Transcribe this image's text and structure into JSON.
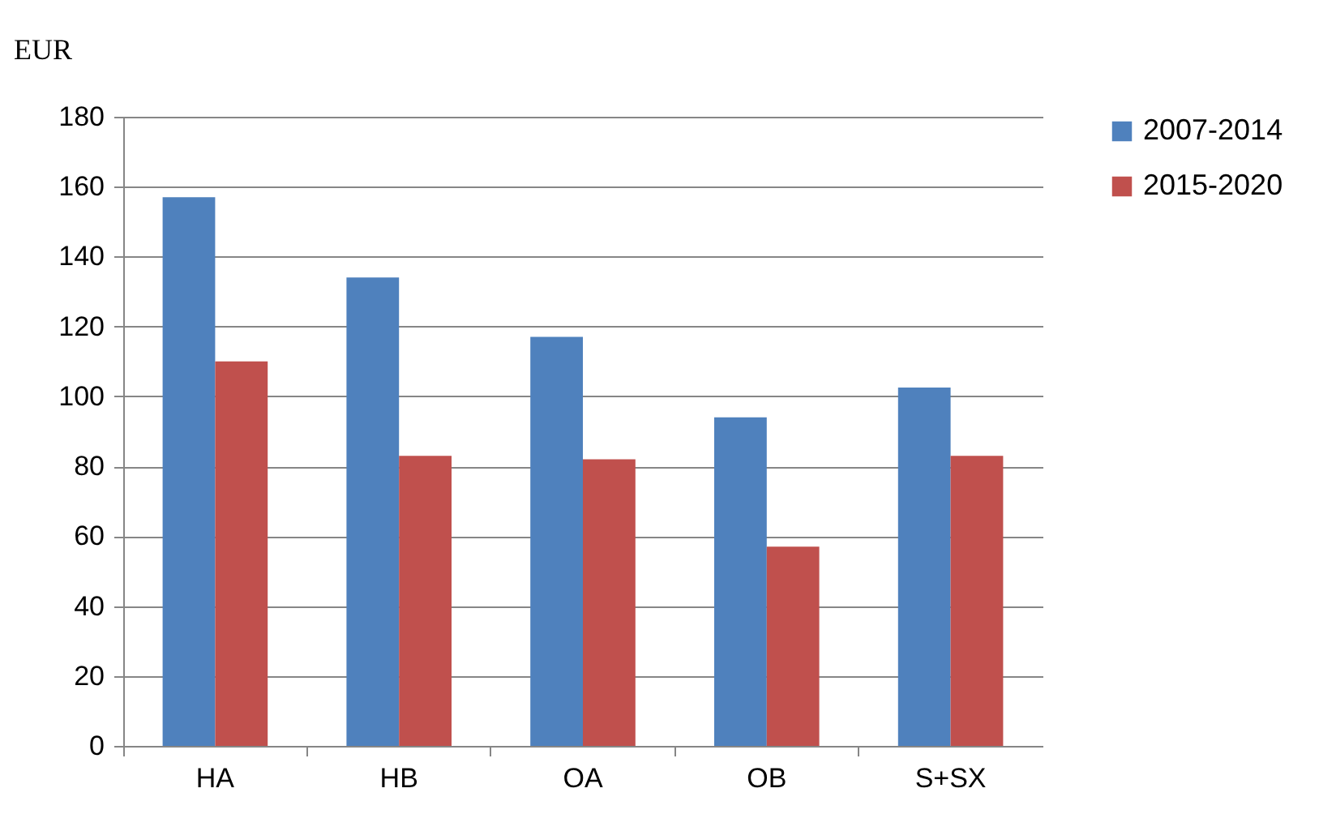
{
  "chart_data": {
    "type": "bar",
    "ylabel": "EUR",
    "categories": [
      "HA",
      "HB",
      "OA",
      "OB",
      "S+SX"
    ],
    "series": [
      {
        "name": "2007-2014",
        "color": "#4f81bd",
        "values": [
          157,
          134,
          117,
          94,
          102.5
        ]
      },
      {
        "name": "2015-2020",
        "color": "#c0504d",
        "values": [
          110,
          83,
          82,
          57,
          83
        ]
      }
    ],
    "ylim": [
      0,
      180
    ],
    "yticks": [
      0,
      20,
      40,
      60,
      80,
      100,
      120,
      140,
      160,
      180
    ],
    "grid": "y",
    "legend": "right"
  }
}
